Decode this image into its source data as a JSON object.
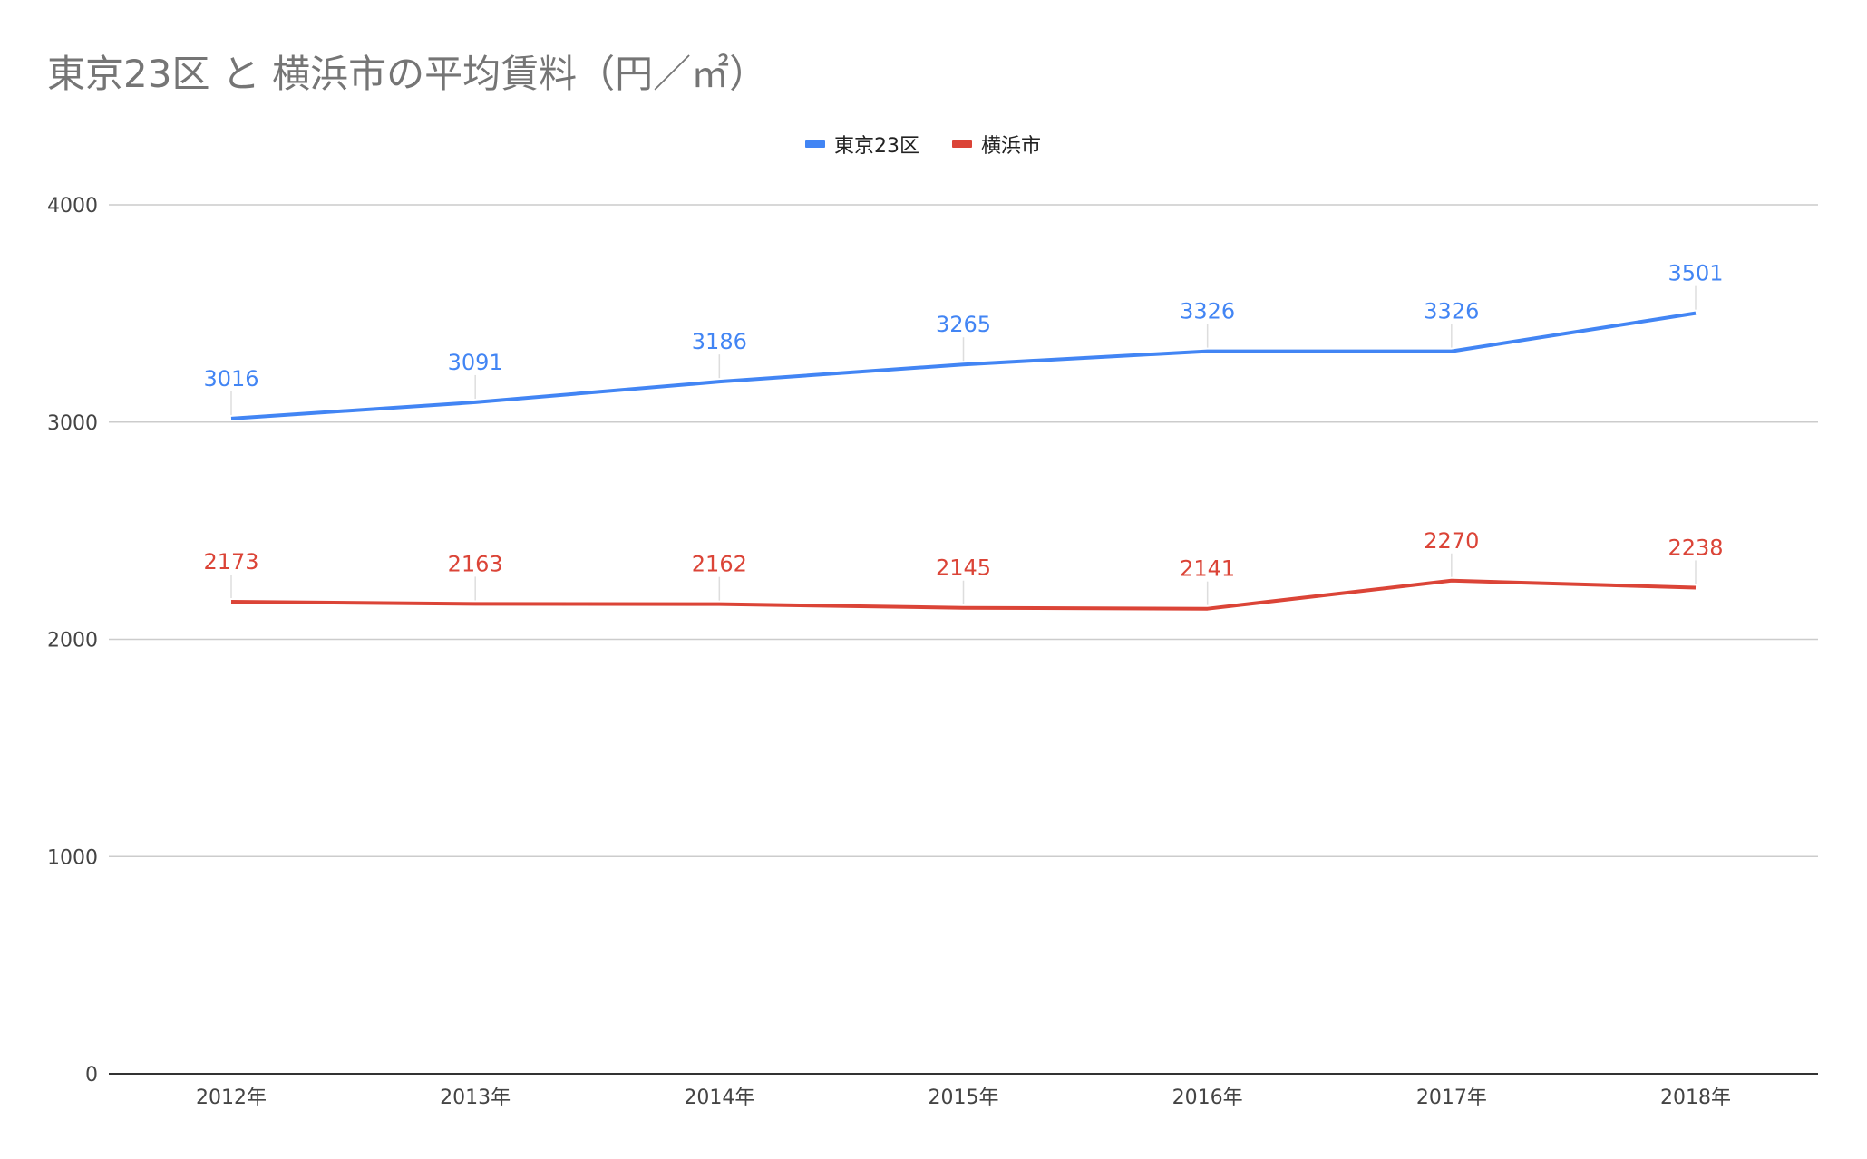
{
  "chart_data": {
    "type": "line",
    "title": "東京23区 と 横浜市の平均賃料（円／㎡）",
    "xlabel": "",
    "ylabel": "",
    "categories": [
      "2012年",
      "2013年",
      "2014年",
      "2015年",
      "2016年",
      "2017年",
      "2018年"
    ],
    "series": [
      {
        "name": "東京23区",
        "color": "#4285f4",
        "values": [
          3016,
          3091,
          3186,
          3265,
          3326,
          3326,
          3501
        ]
      },
      {
        "name": "横浜市",
        "color": "#db4437",
        "values": [
          2173,
          2163,
          2162,
          2145,
          2141,
          2270,
          2238
        ]
      }
    ],
    "ylim": [
      0,
      4000
    ],
    "yticks": [
      "0",
      "1000",
      "2000",
      "3000",
      "4000"
    ],
    "grid": true,
    "legend_position": "top-center",
    "show_data_labels": true
  }
}
